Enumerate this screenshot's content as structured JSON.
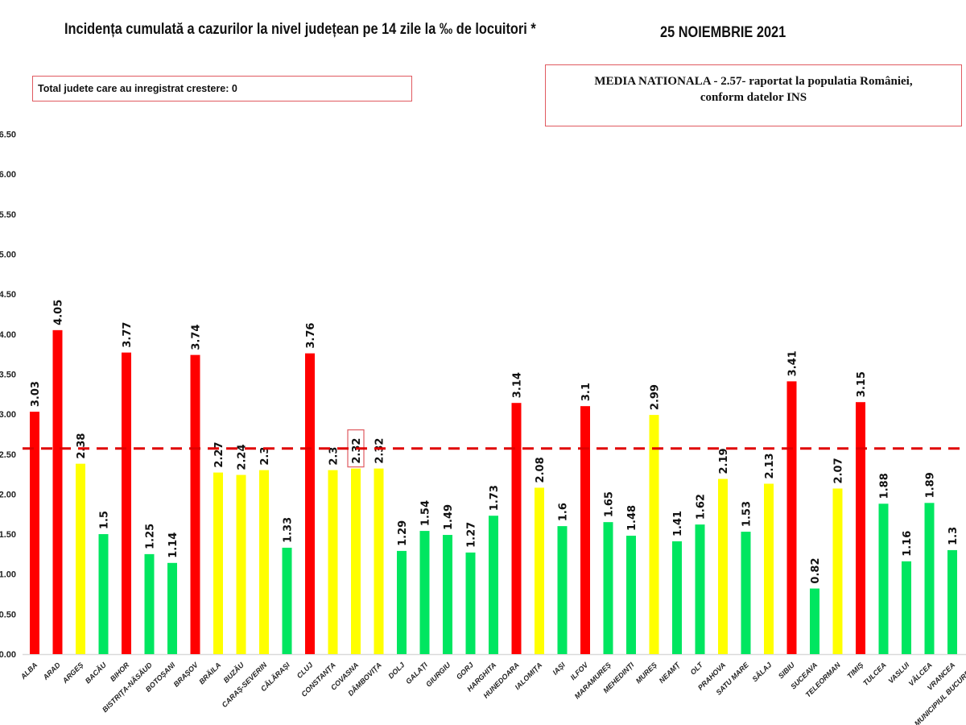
{
  "header": {
    "title": "Incidența cumulată a cazurilor la nivel județean pe 14 zile la ‰ de locuitori *",
    "date": "25 NOIEMBRIE 2021"
  },
  "info_boxes": {
    "increase_total": "Total judete care au inregistrat crestere: 0",
    "national_average_line1": "MEDIA NATIONALA - 2.57-  raportat la populatia României,",
    "national_average_line2": "conform datelor INS"
  },
  "colors": {
    "red": "#ff0000",
    "yellow": "#ffff00",
    "green": "#00e660",
    "average_line": "#e00000"
  },
  "chart_data": {
    "type": "bar",
    "title": "Incidența cumulată a cazurilor la nivel județean pe 14 zile la ‰ de locuitori *",
    "ylim": [
      0,
      6.5
    ],
    "yticks": [
      "0.00",
      "0.50",
      "1.00",
      "1.50",
      "2.00",
      "2.50",
      "3.00",
      "3.50",
      "4.00",
      "4.50",
      "5.00",
      "5.50",
      "6.00",
      "6.50"
    ],
    "grid": false,
    "reference_line": {
      "value": 2.57,
      "style": "dashed",
      "color": "red"
    },
    "highlighted_category": "COVASNA",
    "categories": [
      "ALBA",
      "ARAD",
      "ARGEȘ",
      "BACĂU",
      "BIHOR",
      "BISTRIȚA-NĂSĂUD",
      "BOTOȘANI",
      "BRAȘOV",
      "BRĂILA",
      "BUZĂU",
      "CARAȘ-SEVERIN",
      "CĂLĂRAȘI",
      "CLUJ",
      "CONSTANȚA",
      "COVASNA",
      "DÂMBOVIȚA",
      "DOLJ",
      "GALAȚI",
      "GIURGIU",
      "GORJ",
      "HARGHITA",
      "HUNEDOARA",
      "IALOMIȚA",
      "IAȘI",
      "ILFOV",
      "MARAMUREȘ",
      "MEHEDINȚI",
      "MUREȘ",
      "NEAMȚ",
      "OLT",
      "PRAHOVA",
      "SATU MARE",
      "SĂLAJ",
      "SIBIU",
      "SUCEAVA",
      "TELEORMAN",
      "TIMIȘ",
      "TULCEA",
      "VASLUI",
      "VÂLCEA",
      "VRANCEA",
      "MUNICIPIUL BUCUREȘTI"
    ],
    "values": [
      3.03,
      4.05,
      2.38,
      1.5,
      3.77,
      1.25,
      1.14,
      3.74,
      2.27,
      2.24,
      2.3,
      1.33,
      3.76,
      2.3,
      2.32,
      2.32,
      1.29,
      1.54,
      1.49,
      1.27,
      1.73,
      3.14,
      2.08,
      1.6,
      3.1,
      1.65,
      1.48,
      2.99,
      1.41,
      1.62,
      2.19,
      1.53,
      2.13,
      3.41,
      0.82,
      2.07,
      3.15,
      1.88,
      1.16,
      1.89,
      1.3,
      null
    ],
    "labels": [
      "3.03",
      "4.05",
      "2.38",
      "1.5",
      "3.77",
      "1.25",
      "1.14",
      "3.74",
      "2.27",
      "2.24",
      "2.3",
      "1.33",
      "3.76",
      "2.3",
      "2.32",
      "2.32",
      "1.29",
      "1.54",
      "1.49",
      "1.27",
      "1.73",
      "3.14",
      "2.08",
      "1.6",
      "3.1",
      "1.65",
      "1.48",
      "2.99",
      "1.41",
      "1.62",
      "2.19",
      "1.53",
      "2.13",
      "3.41",
      "0.82",
      "2.07",
      "3.15",
      "1.88",
      "1.16",
      "1.89",
      "1.3",
      ""
    ],
    "bar_colors": [
      "red",
      "red",
      "yellow",
      "green",
      "red",
      "green",
      "green",
      "red",
      "yellow",
      "yellow",
      "yellow",
      "green",
      "red",
      "yellow",
      "yellow",
      "yellow",
      "green",
      "green",
      "green",
      "green",
      "green",
      "red",
      "yellow",
      "green",
      "red",
      "green",
      "green",
      "yellow",
      "green",
      "green",
      "yellow",
      "green",
      "yellow",
      "red",
      "green",
      "yellow",
      "red",
      "green",
      "green",
      "green",
      "green",
      ""
    ]
  }
}
